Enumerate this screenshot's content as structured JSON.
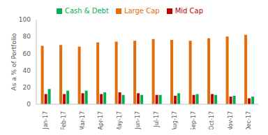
{
  "chart_data": {
    "type": "bar",
    "y_label": "As a % of Portfolio",
    "categories": [
      "Jan-17",
      "Feb-17",
      "Mar-17",
      "Apr-17",
      "May-17",
      "Jun-17",
      "Jul-17",
      "Aug-17",
      "Sep-17",
      "Oct-17",
      "Nov-17",
      "Dec-17"
    ],
    "series": [
      {
        "name": "Large Cap",
        "color": "#e46c0a",
        "values": [
          69,
          70,
          68,
          73,
          74,
          75,
          77,
          76,
          75,
          78,
          80,
          82
        ]
      },
      {
        "name": "Mid Cap",
        "color": "#c00000",
        "values": [
          12,
          12,
          13,
          12,
          14,
          13,
          11,
          10,
          11,
          12,
          9,
          7
        ]
      },
      {
        "name": "Cash & Debt",
        "color": "#00b050",
        "values": [
          18,
          16,
          16,
          14,
          11,
          11,
          11,
          13,
          12,
          11,
          10,
          9
        ]
      }
    ],
    "ylim": [
      0,
      100
    ],
    "yticks": [
      0,
      20,
      40,
      60,
      80,
      100
    ],
    "grid": false,
    "legend": "top"
  }
}
